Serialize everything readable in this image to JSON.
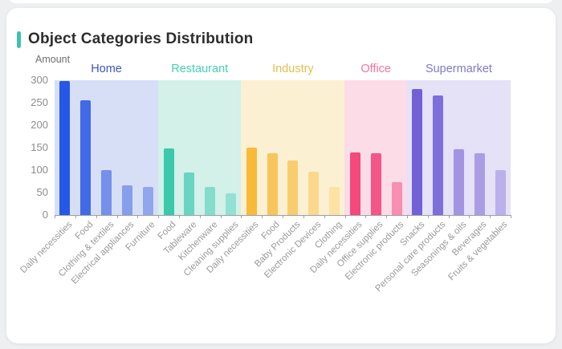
{
  "header": {
    "accent_color": "#3fc0b4"
  },
  "chart_data": {
    "type": "bar",
    "title": "Object Categories Distribution",
    "ylabel": "Amount",
    "ylim": [
      0,
      300
    ],
    "y_ticks": [
      0,
      50,
      100,
      150,
      200,
      250,
      300
    ],
    "grid": false,
    "legend_position": "top-inline",
    "groups": [
      {
        "name": "Home",
        "label_color": "#3d55c9",
        "panel_color": "#d7dff7",
        "categories": [
          "Daily necessities",
          "Food",
          "Clothing & textiles",
          "Electrical appliances",
          "Furniture"
        ],
        "values": [
          298,
          255,
          100,
          67,
          62
        ],
        "bar_colors": [
          "#2558e8",
          "#406ae8",
          "#7490ea",
          "#879eec",
          "#90a7ee"
        ]
      },
      {
        "name": "Restaurant",
        "label_color": "#45cfb2",
        "panel_color": "#d3f0e9",
        "categories": [
          "Food",
          "Tableware",
          "Kitchenware",
          "Cleaning supplies"
        ],
        "values": [
          148,
          95,
          63,
          48
        ],
        "bar_colors": [
          "#3bc9ab",
          "#69d5c1",
          "#84ddcb",
          "#93e1d3"
        ]
      },
      {
        "name": "Industry",
        "label_color": "#e2bf4b",
        "panel_color": "#fcf0d2",
        "categories": [
          "Daily necessities",
          "Food",
          "Baby Products",
          "Electronic Devices",
          "Clothing"
        ],
        "values": [
          150,
          137,
          122,
          96,
          62
        ],
        "bar_colors": [
          "#f8ba38",
          "#f9c55a",
          "#f9cd6e",
          "#fbd88c",
          "#fce2a4"
        ]
      },
      {
        "name": "Office",
        "label_color": "#f2749e",
        "panel_color": "#fcdce7",
        "categories": [
          "Daily necessities",
          "Office supplies",
          "Electronic products"
        ],
        "values": [
          140,
          137,
          73
        ],
        "bar_colors": [
          "#f3497c",
          "#f45687",
          "#f78fb2"
        ]
      },
      {
        "name": "Supermarket",
        "label_color": "#8079c9",
        "panel_color": "#e5e1f7",
        "categories": [
          "Snacks",
          "Personal care products",
          "Seasonings & oils",
          "Beverages",
          "Fruits & vegetables"
        ],
        "values": [
          281,
          267,
          147,
          138,
          100
        ],
        "bar_colors": [
          "#7261d6",
          "#7e6ed9",
          "#a294e2",
          "#aa9de5",
          "#bbb0ec"
        ]
      }
    ]
  }
}
